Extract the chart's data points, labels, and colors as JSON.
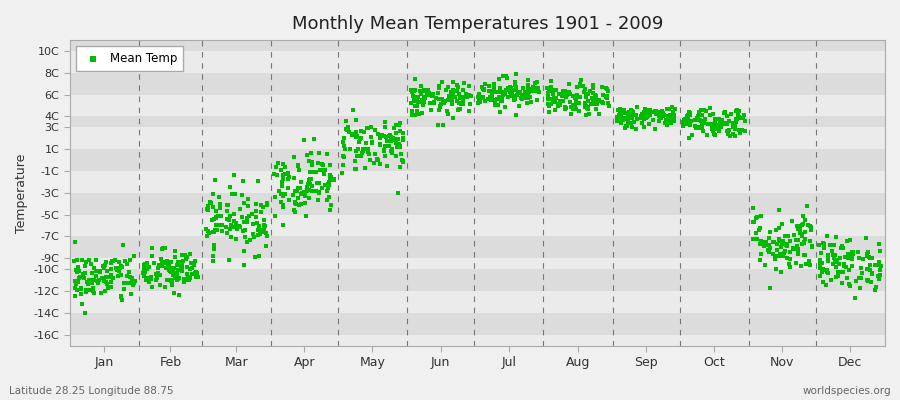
{
  "title": "Monthly Mean Temperatures 1901 - 2009",
  "ylabel": "Temperature",
  "xlabel_bottom_left": "Latitude 28.25 Longitude 88.75",
  "xlabel_bottom_right": "worldspecies.org",
  "legend_label": "Mean Temp",
  "dot_color": "#00bb00",
  "dot_size": 5,
  "background_color": "#f0f0f0",
  "plot_bg_color": "#e8e8e8",
  "band_color_light": "#ebebeb",
  "band_color_dark": "#dcdcdc",
  "dashed_color": "#777777",
  "ylim": [
    -17,
    11
  ],
  "ytick_vals": [
    -16,
    -14,
    -12,
    -10,
    -9,
    -7,
    -5,
    -3,
    -1,
    1,
    3,
    4,
    6,
    8,
    10
  ],
  "ytick_labels": [
    "-16C",
    "-14C",
    "-12C",
    "-10C",
    "-9C",
    "-7C",
    "-5C",
    "-3C",
    "-1C",
    "1C",
    "3C",
    "4C",
    "6C",
    "8C",
    "10C"
  ],
  "months": [
    "Jan",
    "Feb",
    "Mar",
    "Apr",
    "May",
    "Jun",
    "Jul",
    "Aug",
    "Sep",
    "Oct",
    "Nov",
    "Dec"
  ],
  "monthly_means": [
    -10.8,
    -10.2,
    -5.5,
    -2.0,
    1.5,
    5.5,
    6.2,
    5.5,
    4.0,
    3.5,
    -7.5,
    -9.5
  ],
  "monthly_stds": [
    1.2,
    1.0,
    1.5,
    1.5,
    1.3,
    0.8,
    0.7,
    0.7,
    0.5,
    0.7,
    1.5,
    1.2
  ],
  "n_years": 109,
  "seed": 42,
  "figsize": [
    9.0,
    4.0
  ],
  "dpi": 100
}
